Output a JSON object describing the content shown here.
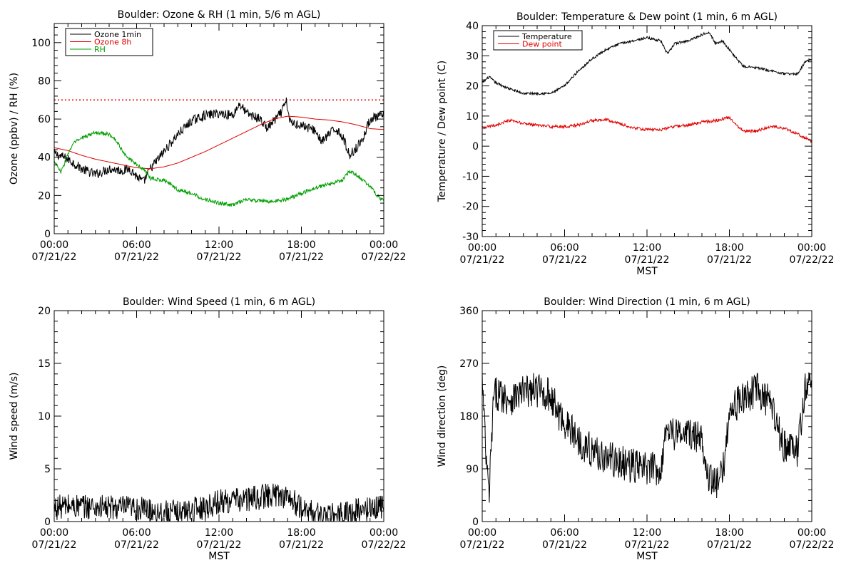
{
  "chart_data": [
    {
      "type": "line",
      "title": "Boulder: Ozone & RH (1 min, 5/6 m AGL)",
      "ylabel": "Ozone (ppbv) / RH (%)",
      "xlabel": "",
      "ylim": [
        0,
        110
      ],
      "yticks": [
        0,
        20,
        40,
        60,
        80,
        100
      ],
      "xlim": [
        0,
        24
      ],
      "xticks": [
        {
          "value": 0,
          "time": "00:00",
          "date": "07/21/22"
        },
        {
          "value": 6,
          "time": "06:00",
          "date": "07/21/22"
        },
        {
          "value": 12,
          "time": "12:00",
          "date": "07/21/22"
        },
        {
          "value": 18,
          "time": "18:00",
          "date": "07/21/22"
        },
        {
          "value": 24,
          "time": "00:00",
          "date": "07/22/22"
        }
      ],
      "legend": "top-left",
      "reference_line": {
        "y": 70,
        "color": "#e00000",
        "style": "dotted"
      },
      "series": [
        {
          "name": "Ozone 1min",
          "color": "#000000",
          "noise": 2.5,
          "x": [
            0,
            1,
            2,
            3,
            4,
            5,
            5.5,
            6,
            6.5,
            7,
            8,
            9,
            10,
            11,
            12,
            13,
            13.5,
            14,
            15,
            15.5,
            16,
            16.5,
            16.9,
            17.2,
            18,
            19,
            19.5,
            20,
            20.5,
            21,
            21.5,
            22,
            22.5,
            23,
            24
          ],
          "y": [
            42,
            39,
            34,
            31,
            34,
            33,
            34,
            30,
            27,
            34,
            43,
            52,
            59,
            62,
            63,
            62,
            68,
            63,
            60,
            55,
            59,
            63,
            69,
            58,
            57,
            54,
            48,
            52,
            55,
            51,
            41,
            45,
            50,
            60,
            62
          ]
        },
        {
          "name": "Ozone 8h",
          "color": "#e00000",
          "noise": 0,
          "x": [
            0,
            1,
            2,
            3,
            4,
            5,
            6,
            7,
            8,
            9,
            10,
            11,
            12,
            13,
            14,
            15,
            16,
            17,
            18,
            19,
            20,
            21,
            22,
            23,
            24
          ],
          "y": [
            45,
            43.5,
            41,
            39,
            37.5,
            36,
            34.5,
            34,
            35,
            37,
            40,
            43,
            46.5,
            50,
            53.5,
            57,
            60,
            61.5,
            61,
            60,
            59.5,
            58.5,
            57,
            55,
            54.5
          ]
        },
        {
          "name": "RH",
          "color": "#00a000",
          "noise": 1.0,
          "x": [
            0,
            0.5,
            1,
            1.5,
            2,
            3,
            4,
            4.5,
            5,
            5.5,
            6,
            6.5,
            7,
            8,
            9,
            10,
            11,
            12,
            13,
            14,
            15,
            16,
            17,
            18,
            19,
            20,
            21,
            21.5,
            22,
            23,
            23.5,
            24
          ],
          "y": [
            38,
            32,
            42,
            48,
            50,
            53,
            52,
            49,
            43,
            39,
            36,
            34,
            29,
            28,
            23,
            21,
            18,
            16,
            15,
            18,
            17,
            17,
            18,
            21,
            24,
            26,
            28,
            33,
            31,
            25,
            20,
            17
          ]
        }
      ]
    },
    {
      "type": "line",
      "title": "Boulder: Temperature & Dew point (1 min, 6 m AGL)",
      "ylabel": "Temperature / Dew point (C)",
      "xlabel": "MST",
      "ylim": [
        -30,
        40
      ],
      "yticks": [
        -30,
        -20,
        -10,
        0,
        10,
        20,
        30,
        40
      ],
      "xlim": [
        0,
        24
      ],
      "xticks": [
        {
          "value": 0,
          "time": "00:00",
          "date": "07/21/22"
        },
        {
          "value": 6,
          "time": "06:00",
          "date": "07/21/22"
        },
        {
          "value": 12,
          "time": "12:00",
          "date": "07/21/22"
        },
        {
          "value": 18,
          "time": "18:00",
          "date": "07/21/22"
        },
        {
          "value": 24,
          "time": "00:00",
          "date": "07/22/22"
        }
      ],
      "legend": "top-left",
      "series": [
        {
          "name": "Temperature",
          "color": "#000000",
          "noise": 0.4,
          "x": [
            0,
            0.5,
            1,
            2,
            3,
            4,
            5,
            6,
            7,
            8,
            9,
            10,
            11,
            12,
            13,
            13.5,
            14,
            15,
            16,
            16.5,
            17,
            17.5,
            18,
            19,
            20,
            21,
            22,
            23,
            23.5,
            24
          ],
          "y": [
            21,
            23,
            21,
            19,
            17.5,
            17.5,
            17.5,
            20,
            25,
            29,
            32,
            34,
            35,
            36,
            35,
            30.5,
            34,
            35,
            37,
            38,
            34,
            35,
            32,
            26.5,
            26,
            25,
            24,
            24,
            28,
            29
          ]
        },
        {
          "name": "Dew point",
          "color": "#e00000",
          "noise": 0.5,
          "x": [
            0,
            1,
            2,
            3,
            4,
            5,
            6,
            7,
            8,
            9,
            10,
            11,
            12,
            13,
            14,
            15,
            16,
            17,
            18,
            19,
            20,
            21,
            22,
            23,
            24
          ],
          "y": [
            6,
            7,
            8.5,
            7.5,
            7,
            6.5,
            6.5,
            7,
            8.5,
            9,
            7.5,
            6,
            5.5,
            5.5,
            6.5,
            7,
            8,
            8.5,
            9.5,
            5,
            5,
            6.5,
            6,
            4,
            1.5
          ]
        }
      ]
    },
    {
      "type": "line",
      "title": "Boulder: Wind Speed (1 min, 6 m AGL)",
      "ylabel": "Wind speed (m/s)",
      "xlabel": "MST",
      "ylim": [
        0,
        20
      ],
      "yticks": [
        0,
        5,
        10,
        15,
        20
      ],
      "xlim": [
        0,
        24
      ],
      "xticks": [
        {
          "value": 0,
          "time": "00:00",
          "date": "07/21/22"
        },
        {
          "value": 6,
          "time": "06:00",
          "date": "07/21/22"
        },
        {
          "value": 12,
          "time": "12:00",
          "date": "07/21/22"
        },
        {
          "value": 18,
          "time": "18:00",
          "date": "07/21/22"
        },
        {
          "value": 24,
          "time": "00:00",
          "date": "07/22/22"
        }
      ],
      "series": [
        {
          "name": "",
          "color": "#000000",
          "noise": 1.2,
          "x": [
            0,
            1,
            2,
            3,
            4,
            5,
            6,
            7,
            8,
            9,
            10,
            11,
            12,
            13,
            14,
            15,
            16,
            17,
            18,
            19,
            20,
            21,
            22,
            23,
            24
          ],
          "y": [
            1.3,
            1.5,
            1.4,
            1.4,
            1.3,
            1.3,
            1.2,
            1.1,
            0.9,
            0.8,
            1.1,
            1.4,
            1.9,
            2.0,
            2.1,
            2.3,
            2.6,
            2.4,
            1.2,
            0.8,
            0.5,
            0.7,
            1.0,
            1.2,
            1.5
          ]
        }
      ]
    },
    {
      "type": "line",
      "title": "Boulder: Wind Direction (1 min, 6 m AGL)",
      "ylabel": "Wind direction (deg)",
      "xlabel": "MST",
      "ylim": [
        0,
        360
      ],
      "yticks": [
        0,
        90,
        180,
        270,
        360
      ],
      "xlim": [
        0,
        24
      ],
      "xticks": [
        {
          "value": 0,
          "time": "00:00",
          "date": "07/21/22"
        },
        {
          "value": 6,
          "time": "06:00",
          "date": "07/21/22"
        },
        {
          "value": 12,
          "time": "12:00",
          "date": "07/21/22"
        },
        {
          "value": 18,
          "time": "18:00",
          "date": "07/21/22"
        },
        {
          "value": 24,
          "time": "00:00",
          "date": "07/22/22"
        }
      ],
      "series": [
        {
          "name": "",
          "color": "#000000",
          "noise": 30,
          "x": [
            0,
            0.3,
            0.5,
            0.8,
            1,
            2,
            3,
            4,
            5,
            5.5,
            6,
            7,
            8,
            9,
            10,
            11,
            12,
            13,
            13.5,
            14,
            15,
            16,
            16.5,
            17,
            17.5,
            18,
            19,
            20,
            21,
            21.5,
            22,
            23,
            23.5,
            24
          ],
          "y": [
            240,
            100,
            40,
            200,
            220,
            210,
            220,
            225,
            215,
            185,
            170,
            140,
            120,
            110,
            100,
            95,
            90,
            90,
            170,
            150,
            150,
            140,
            80,
            60,
            80,
            190,
            210,
            225,
            200,
            160,
            130,
            120,
            230,
            230
          ]
        }
      ]
    }
  ]
}
